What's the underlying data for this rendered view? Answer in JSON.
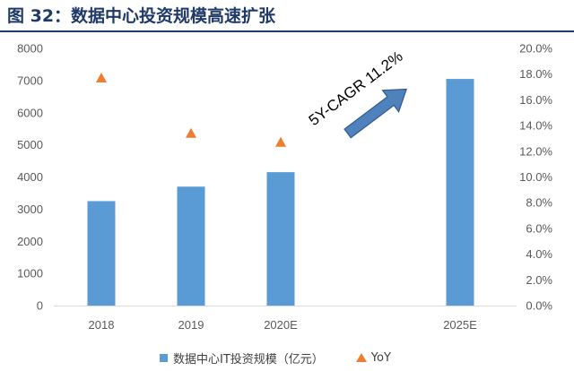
{
  "figure_title": "图 32：数据中心投资规模高速扩张",
  "chart_data": {
    "type": "bar",
    "categories": [
      "2018",
      "2019",
      "2020E",
      "2025E"
    ],
    "series": [
      {
        "name": "数据中心IT投资规模（亿元）",
        "type": "bar",
        "axis": "left",
        "values": [
          3250,
          3700,
          4150,
          7050
        ],
        "color": "#5b9bd5"
      },
      {
        "name": "YoY",
        "type": "scatter",
        "axis": "right",
        "marker": "triangle",
        "values": [
          0.177,
          0.134,
          0.127,
          null
        ],
        "color": "#ed7d31"
      }
    ],
    "y_left": {
      "min": 0,
      "max": 8000,
      "ticks": [
        "0",
        "1000",
        "2000",
        "3000",
        "4000",
        "5000",
        "6000",
        "7000",
        "8000"
      ]
    },
    "y_right": {
      "min": 0,
      "max": 0.2,
      "ticks": [
        "0.0%",
        "2.0%",
        "4.0%",
        "6.0%",
        "8.0%",
        "10.0%",
        "12.0%",
        "14.0%",
        "16.0%",
        "18.0%",
        "20.0%"
      ]
    },
    "annotation": "5Y-CAGR 11.2%",
    "legend_position": "bottom",
    "grid": false
  }
}
